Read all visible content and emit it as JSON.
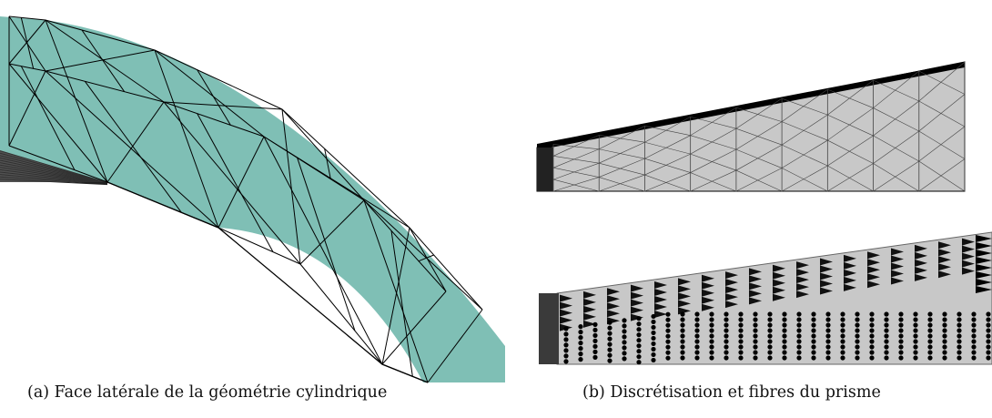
{
  "figure": {
    "subfigures": [
      {
        "id": "a",
        "caption": "(a) Face latérale de la géométrie cylindrique"
      },
      {
        "id": "b",
        "caption": "(b) Discrétisation et fibres du prisme"
      }
    ]
  },
  "colors": {
    "mesh_fill": "#7fbfb5",
    "prism_fill": "#c8c8c8",
    "prism_end": "#3a3a3a",
    "edge": "#000000",
    "background": "#ffffff"
  }
}
